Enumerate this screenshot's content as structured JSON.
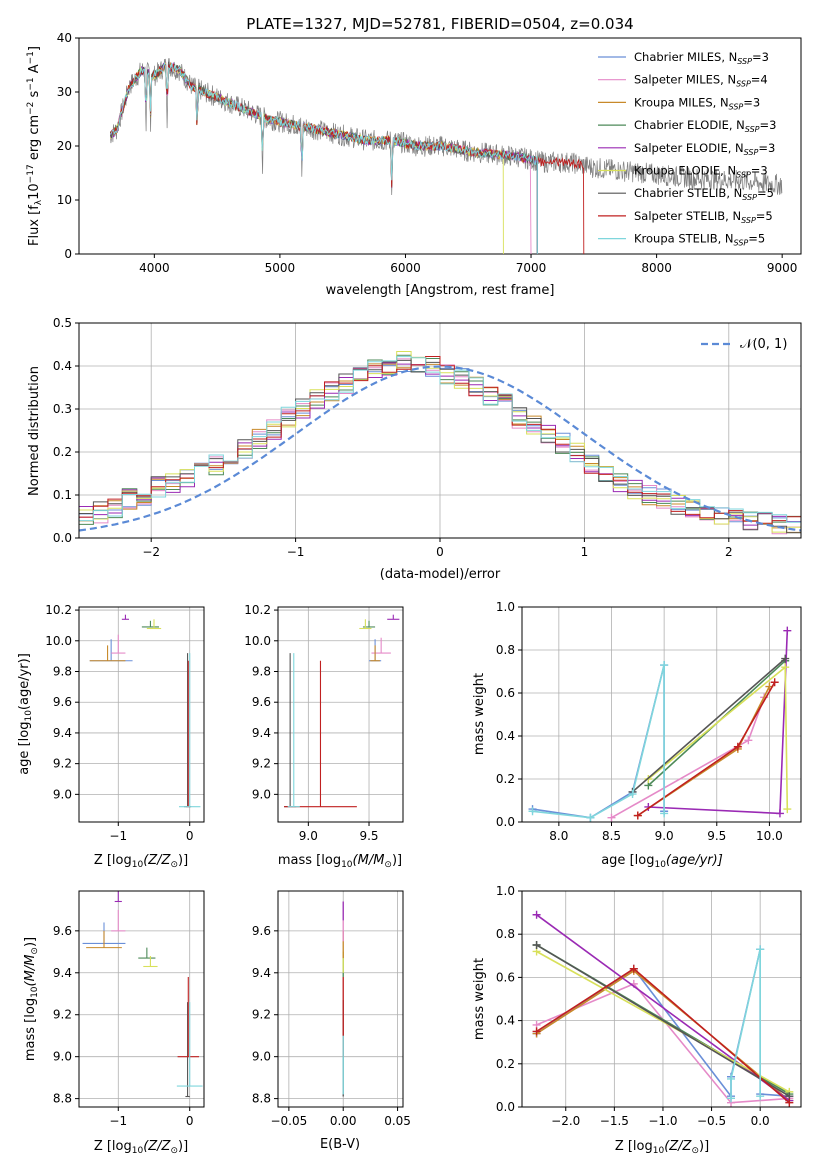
{
  "figure": {
    "title": "PLATE=1327, MJD=52781, FIBERID=0504, z=0.034",
    "series": [
      {
        "name": "Chabrier MILES",
        "nssp": "3",
        "color": "#6a8fd8"
      },
      {
        "name": "Salpeter MILES",
        "nssp": "4",
        "color": "#e58ac8"
      },
      {
        "name": "Kroupa MILES",
        "nssp": "3",
        "color": "#c8892a"
      },
      {
        "name": "Chabrier ELODIE",
        "nssp": "3",
        "color": "#4d8a58"
      },
      {
        "name": "Salpeter ELODIE",
        "nssp": "3",
        "color": "#9a2ab4"
      },
      {
        "name": "Kroupa ELODIE",
        "nssp": "3",
        "color": "#d8e05a"
      },
      {
        "name": "Chabrier STELIB",
        "nssp": "5",
        "color": "#555555"
      },
      {
        "name": "Salpeter STELIB",
        "nssp": "5",
        "color": "#c02020"
      },
      {
        "name": "Kroupa STELIB",
        "nssp": "5",
        "color": "#7fd6dc"
      }
    ],
    "gaussian": {
      "label": "𝒩(0, 1)",
      "color": "#5b8ad6"
    }
  },
  "chart_data": [
    {
      "id": "spectrum",
      "type": "line",
      "xlabel": "wavelength [Angstrom, rest frame]",
      "ylabel_main": "Flux [f",
      "ylabel_sub1": "λ",
      "ylabel_mid": "10",
      "ylabel_sup1": "−17",
      "ylabel_mid2": " erg cm",
      "ylabel_sup2": "−2",
      "ylabel_mid3": " s",
      "ylabel_sup3": "−1",
      "ylabel_mid4": " A",
      "ylabel_sup4": "−1",
      "ylabel_end": "]",
      "xlim": [
        3400,
        9150
      ],
      "ylim": [
        0,
        40
      ],
      "xticks": [
        4000,
        5000,
        6000,
        7000,
        8000,
        9000
      ],
      "yticks": [
        0,
        10,
        20,
        30,
        40
      ],
      "data_x": [
        3650,
        3700,
        3800,
        3900,
        4000,
        4100,
        4200,
        4300,
        4500,
        4700,
        4900,
        5100,
        5300,
        5500,
        5700,
        5900,
        6100,
        6300,
        6500,
        6700,
        6900,
        7100,
        7300,
        7500,
        7700,
        7900,
        8100,
        8300,
        8500,
        8700,
        8900,
        9000
      ],
      "data_y": [
        22,
        23,
        31,
        34,
        33,
        35,
        34,
        31,
        29,
        27,
        25,
        24,
        23,
        22,
        21,
        21,
        20,
        20,
        19,
        18.5,
        18,
        17,
        17,
        16,
        15.5,
        15,
        14.5,
        14,
        13.8,
        13.5,
        13,
        12.8
      ],
      "model_end": [
        7050,
        7000,
        7050,
        7050,
        7050,
        6780,
        7050,
        7420,
        7050
      ]
    },
    {
      "id": "residuals",
      "type": "line",
      "xlabel": "(data-model)/error",
      "ylabel": "Normed distribution",
      "xlim": [
        -2.5,
        2.5
      ],
      "ylim": [
        0,
        0.5
      ],
      "xticks": [
        -2,
        -1,
        0,
        1,
        2
      ],
      "xticklabels": [
        "−2",
        "−1",
        "0",
        "1",
        "2"
      ],
      "yticks": [
        0.0,
        0.1,
        0.2,
        0.3,
        0.4,
        0.5
      ],
      "yticklabels": [
        "0.0",
        "0.1",
        "0.2",
        "0.3",
        "0.4",
        "0.5"
      ],
      "bin_start": -2.5,
      "bin_width": 0.1,
      "hist": [
        0.05,
        0.06,
        0.07,
        0.09,
        0.1,
        0.12,
        0.13,
        0.14,
        0.15,
        0.17,
        0.19,
        0.21,
        0.23,
        0.25,
        0.28,
        0.3,
        0.32,
        0.34,
        0.36,
        0.38,
        0.39,
        0.4,
        0.41,
        0.41,
        0.4,
        0.38,
        0.37,
        0.35,
        0.33,
        0.31,
        0.28,
        0.26,
        0.24,
        0.22,
        0.2,
        0.17,
        0.15,
        0.13,
        0.11,
        0.1,
        0.09,
        0.08,
        0.07,
        0.06,
        0.05,
        0.05,
        0.04,
        0.04,
        0.03,
        0.03
      ]
    },
    {
      "id": "z-age",
      "type": "scatter",
      "xlabel_pre": "Z [log",
      "xlabel_sub": "10",
      "xlabel_post": "(Z/Z",
      "xlabel_sub2": "⊙",
      "xlabel_end": ")]",
      "ylabel_pre": "age  [log",
      "ylabel_sub": "10",
      "ylabel_post": "(age/yr)]",
      "xlim": [
        -1.55,
        0.2
      ],
      "ylim": [
        8.82,
        10.22
      ],
      "xticks": [
        -1,
        0
      ],
      "xticklabels": [
        "−1",
        "0"
      ],
      "yticks": [
        9.0,
        9.2,
        9.4,
        9.6,
        9.8,
        10.0,
        10.2
      ],
      "yticklabels": [
        "9.0",
        "9.2",
        "9.4",
        "9.6",
        "9.8",
        "10.0",
        "10.2"
      ],
      "points": [
        {
          "s": 0,
          "x": -1.1,
          "y": 9.87,
          "ex": 0.3,
          "ey": 0.14
        },
        {
          "s": 1,
          "x": -1.0,
          "y": 9.92,
          "ex": 0.1,
          "ey": 0.12
        },
        {
          "s": 2,
          "x": -1.15,
          "y": 9.87,
          "ex": 0.25,
          "ey": 0.1
        },
        {
          "s": 3,
          "x": -0.55,
          "y": 10.09,
          "ex": 0.12,
          "ey": 0.04
        },
        {
          "s": 4,
          "x": -0.9,
          "y": 10.14,
          "ex": 0.05,
          "ey": 0.03
        },
        {
          "s": 5,
          "x": -0.5,
          "y": 10.08,
          "ex": 0.1,
          "ey": 0.06
        },
        {
          "s": 6,
          "x": -0.03,
          "y": 8.92,
          "ex": 0.05,
          "ey": 1.0
        },
        {
          "s": 7,
          "x": -0.02,
          "y": 8.92,
          "ex": 0.03,
          "ey": 0.95
        },
        {
          "s": 8,
          "x": 0.0,
          "y": 8.92,
          "ex": 0.15,
          "ey": 1.0
        }
      ]
    },
    {
      "id": "mass-age",
      "type": "scatter",
      "xlabel_pre": "mass [log",
      "xlabel_sub": "10",
      "xlabel_post": "(M/M",
      "xlabel_sub2": "⊙",
      "xlabel_end": ")]",
      "xlim": [
        8.75,
        9.78
      ],
      "ylim": [
        8.82,
        10.22
      ],
      "xticks": [
        9.0,
        9.5
      ],
      "xticklabels": [
        "9.0",
        "9.5"
      ],
      "yticks": [
        9.0,
        9.2,
        9.4,
        9.6,
        9.8,
        10.0,
        10.2
      ],
      "yticklabels": [
        "9.0",
        "9.2",
        "9.4",
        "9.6",
        "9.8",
        "10.0",
        "10.2"
      ],
      "points": [
        {
          "s": 0,
          "x": 9.55,
          "y": 9.87,
          "ex": 0.05,
          "ey": 0.14
        },
        {
          "s": 1,
          "x": 9.6,
          "y": 9.92,
          "ex": 0.08,
          "ey": 0.1
        },
        {
          "s": 2,
          "x": 9.55,
          "y": 9.87,
          "ex": 0.04,
          "ey": 0.1
        },
        {
          "s": 3,
          "x": 9.5,
          "y": 10.09,
          "ex": 0.05,
          "ey": 0.04
        },
        {
          "s": 4,
          "x": 9.7,
          "y": 10.14,
          "ex": 0.05,
          "ey": 0.03
        },
        {
          "s": 5,
          "x": 9.47,
          "y": 10.08,
          "ex": 0.05,
          "ey": 0.06
        },
        {
          "s": 6,
          "x": 8.85,
          "y": 8.92,
          "ex": 0.05,
          "ey": 1.0
        },
        {
          "s": 7,
          "x": 9.1,
          "y": 8.92,
          "ex": 0.3,
          "ey": 0.95
        },
        {
          "s": 8,
          "x": 8.88,
          "y": 8.92,
          "ex": 0.05,
          "ey": 1.0
        }
      ]
    },
    {
      "id": "age-weight",
      "type": "line",
      "xlabel_pre": "age  [log",
      "xlabel_sub": "10",
      "xlabel_post": "(age/yr)]",
      "ylabel": "mass weight",
      "xlim": [
        7.65,
        10.3
      ],
      "ylim": [
        0,
        1.0
      ],
      "xticks": [
        8.0,
        8.5,
        9.0,
        9.5,
        10.0
      ],
      "xticklabels": [
        "8.0",
        "8.5",
        "9.0",
        "9.5",
        "10.0"
      ],
      "yticks": [
        0.0,
        0.2,
        0.4,
        0.6,
        0.8,
        1.0
      ],
      "yticklabels": [
        "0.0",
        "0.2",
        "0.4",
        "0.6",
        "0.8",
        "1.0"
      ],
      "lines": [
        {
          "s": 0,
          "x": [
            7.75,
            8.3,
            8.7,
            9.0,
            9.0
          ],
          "y": [
            0.06,
            0.02,
            0.14,
            0.73,
            0.05
          ]
        },
        {
          "s": 1,
          "x": [
            8.5,
            9.8,
            9.95
          ],
          "y": [
            0.02,
            0.38,
            0.58
          ]
        },
        {
          "s": 2,
          "x": [
            8.75,
            9.7,
            10.0
          ],
          "y": [
            0.03,
            0.34,
            0.63
          ]
        },
        {
          "s": 3,
          "x": [
            8.85,
            10.15
          ],
          "y": [
            0.17,
            0.75
          ]
        },
        {
          "s": 4,
          "x": [
            8.85,
            10.1,
            10.17
          ],
          "y": [
            0.07,
            0.04,
            0.89
          ]
        },
        {
          "s": 5,
          "x": [
            8.85,
            10.15,
            10.17
          ],
          "y": [
            0.2,
            0.72,
            0.06
          ]
        },
        {
          "s": 6,
          "x": [
            8.7,
            10.15
          ],
          "y": [
            0.14,
            0.76
          ]
        },
        {
          "s": 7,
          "x": [
            8.75,
            9.7,
            10.05
          ],
          "y": [
            0.03,
            0.35,
            0.65
          ]
        },
        {
          "s": 8,
          "x": [
            7.75,
            8.3,
            8.7,
            9.0,
            9.0
          ],
          "y": [
            0.05,
            0.02,
            0.13,
            0.73,
            0.04
          ]
        }
      ]
    },
    {
      "id": "z-mass",
      "type": "scatter",
      "xlabel_pre": "Z [log",
      "xlabel_sub": "10",
      "xlabel_post": "(Z/Z",
      "xlabel_sub2": "⊙",
      "xlabel_end": ")]",
      "ylabel_pre": "mass [log",
      "ylabel_sub": "10",
      "ylabel_post": "(M/M",
      "ylabel_sub2": "⊙",
      "ylabel_end": ")]",
      "xlim": [
        -1.55,
        0.2
      ],
      "ylim": [
        8.76,
        9.79
      ],
      "xticks": [
        -1,
        0
      ],
      "xticklabels": [
        "−1",
        "0"
      ],
      "yticks": [
        8.8,
        9.0,
        9.2,
        9.4,
        9.6
      ],
      "yticklabels": [
        "8.8",
        "9.0",
        "9.2",
        "9.4",
        "9.6"
      ],
      "points": [
        {
          "s": 0,
          "x": -1.2,
          "y": 9.54,
          "ex": 0.3,
          "ey": 0.1
        },
        {
          "s": 1,
          "x": -1.0,
          "y": 9.6,
          "ex": 0.1,
          "ey": 0.1
        },
        {
          "s": 2,
          "x": -1.2,
          "y": 9.52,
          "ex": 0.25,
          "ey": 0.08
        },
        {
          "s": 3,
          "x": -0.6,
          "y": 9.47,
          "ex": 0.12,
          "ey": 0.05
        },
        {
          "s": 4,
          "x": -1.0,
          "y": 9.74,
          "ex": 0.05,
          "ey": 0.05
        },
        {
          "s": 5,
          "x": -0.55,
          "y": 9.43,
          "ex": 0.1,
          "ey": 0.05
        },
        {
          "s": 6,
          "x": -0.03,
          "y": 8.81,
          "ex": 0.03,
          "ey": 0.45
        },
        {
          "s": 7,
          "x": -0.02,
          "y": 9.0,
          "ex": 0.15,
          "ey": 0.38
        },
        {
          "s": 8,
          "x": 0.0,
          "y": 8.86,
          "ex": 0.18,
          "ey": 0.4
        }
      ]
    },
    {
      "id": "ebv-mass",
      "type": "scatter",
      "xlabel": "E(B-V)",
      "xlim": [
        -0.06,
        0.055
      ],
      "ylim": [
        8.76,
        9.79
      ],
      "xticks": [
        -0.05,
        0.0,
        0.05
      ],
      "xticklabels": [
        "−0.05",
        "0.00",
        "0.05"
      ],
      "yticks": [
        8.8,
        9.0,
        9.2,
        9.4,
        9.6
      ],
      "yticklabels": [
        "8.8",
        "9.0",
        "9.2",
        "9.4",
        "9.6"
      ],
      "segments": [
        {
          "s": 6,
          "y0": 8.81,
          "y1": 9.27
        },
        {
          "s": 7,
          "y0": 9.0,
          "y1": 9.38
        },
        {
          "s": 3,
          "y0": 9.38,
          "y1": 9.5
        },
        {
          "s": 5,
          "y0": 9.4,
          "y1": 9.5
        },
        {
          "s": 2,
          "y0": 9.47,
          "y1": 9.6
        },
        {
          "s": 1,
          "y0": 9.55,
          "y1": 9.65
        },
        {
          "s": 4,
          "y0": 9.65,
          "y1": 9.74
        },
        {
          "s": 8,
          "y0": 8.82,
          "y1": 9.1
        }
      ]
    },
    {
      "id": "z-weight",
      "type": "line",
      "xlabel_pre": "Z [log",
      "xlabel_sub": "10",
      "xlabel_post": "(Z/Z",
      "xlabel_sub2": "⊙",
      "xlabel_end": ")]",
      "ylabel": "mass weight",
      "xlim": [
        -2.45,
        0.42
      ],
      "ylim": [
        0,
        1.0
      ],
      "xticks": [
        -2.0,
        -1.5,
        -1.0,
        -0.5,
        0.0
      ],
      "xticklabels": [
        "−2.0",
        "−1.5",
        "−1.0",
        "−0.5",
        "0.0"
      ],
      "yticks": [
        0.0,
        0.2,
        0.4,
        0.6,
        0.8,
        1.0
      ],
      "yticklabels": [
        "0.0",
        "0.2",
        "0.4",
        "0.6",
        "0.8",
        "1.0"
      ],
      "lines": [
        {
          "s": 0,
          "x": [
            -2.3,
            -1.3,
            -0.3,
            -0.3,
            0.0,
            0.0,
            0.3
          ],
          "y": [
            0.34,
            0.64,
            0.05,
            0.14,
            0.73,
            0.06,
            0.05
          ]
        },
        {
          "s": 1,
          "x": [
            -2.3,
            -1.3,
            -0.3,
            0.3
          ],
          "y": [
            0.38,
            0.57,
            0.02,
            0.04
          ]
        },
        {
          "s": 2,
          "x": [
            -2.3,
            -1.3,
            0.3
          ],
          "y": [
            0.34,
            0.63,
            0.03
          ]
        },
        {
          "s": 3,
          "x": [
            -2.3,
            0.3
          ],
          "y": [
            0.75,
            0.06
          ]
        },
        {
          "s": 4,
          "x": [
            -2.3,
            0.3
          ],
          "y": [
            0.89,
            0.03
          ]
        },
        {
          "s": 5,
          "x": [
            -2.3,
            0.3
          ],
          "y": [
            0.72,
            0.07
          ]
        },
        {
          "s": 6,
          "x": [
            -2.3,
            0.3
          ],
          "y": [
            0.75,
            0.05
          ]
        },
        {
          "s": 7,
          "x": [
            -2.3,
            -1.3,
            0.3
          ],
          "y": [
            0.35,
            0.64,
            0.02
          ]
        },
        {
          "s": 8,
          "x": [
            -0.3,
            -0.3,
            0.0,
            0.0
          ],
          "y": [
            0.04,
            0.13,
            0.73,
            0.05
          ]
        }
      ]
    }
  ]
}
